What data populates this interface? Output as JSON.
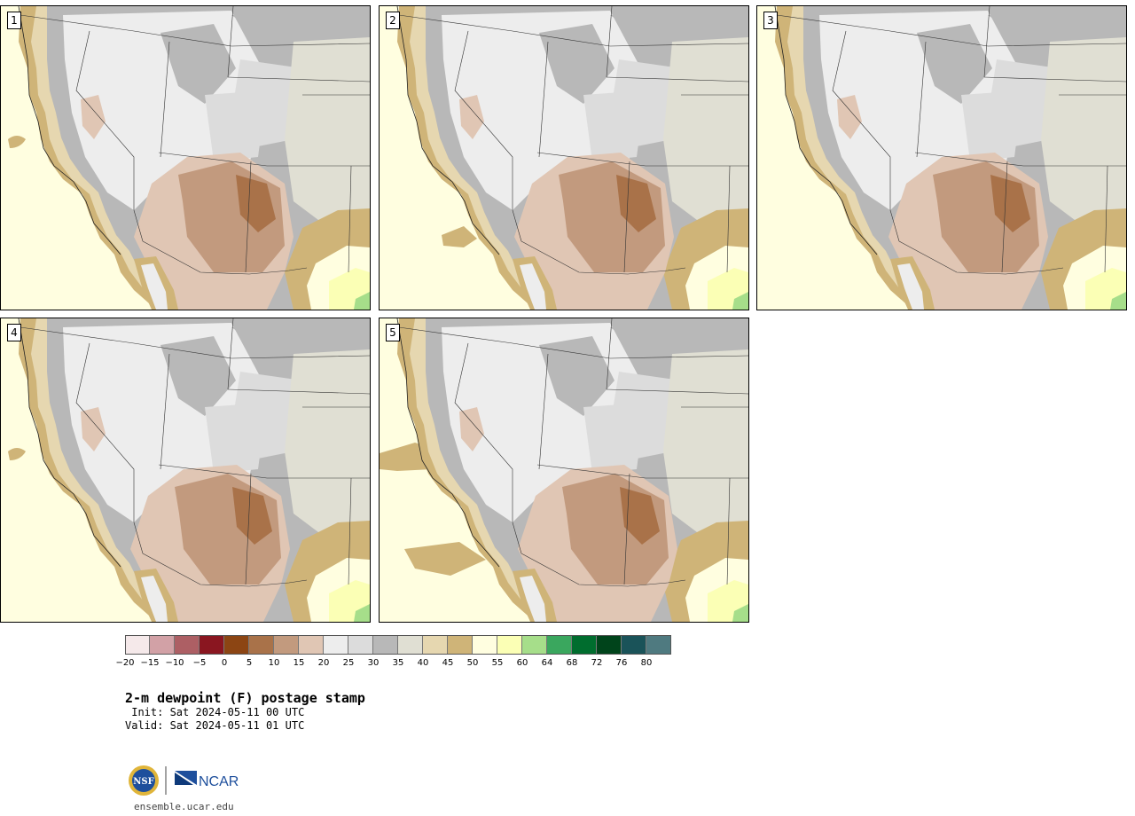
{
  "title": "2-m dewpoint (F) postage stamp",
  "init_line": " Init: Sat 2024-05-11 00 UTC",
  "valid_line": "Valid: Sat 2024-05-11 01 UTC",
  "website": "ensemble.ucar.edu",
  "logos": {
    "nsf": "NSF",
    "ncar": "NCAR"
  },
  "panels": [
    {
      "label": "1"
    },
    {
      "label": "2"
    },
    {
      "label": "3"
    },
    {
      "label": "4"
    },
    {
      "label": "5"
    }
  ],
  "colorbar": {
    "colors": [
      "#f5e9ea",
      "#d2a1a6",
      "#ad5f64",
      "#8a1620",
      "#8c4513",
      "#a97249",
      "#c29a7e",
      "#e0c6b4",
      "#ededed",
      "#dcdcdc",
      "#b8b8b8",
      "#e0dfd3",
      "#e6d7b0",
      "#cfb478",
      "#fffee0",
      "#fbffb5",
      "#a6de8a",
      "#3aa75e",
      "#006d2e",
      "#00441b",
      "#1a5359",
      "#4f7a80"
    ],
    "ticks": [
      "−20",
      "−15",
      "−10",
      "−5",
      "0",
      "5",
      "10",
      "15",
      "20",
      "25",
      "30",
      "35",
      "40",
      "45",
      "50",
      "55",
      "60",
      "64",
      "68",
      "72",
      "76",
      "80"
    ]
  },
  "palette": {
    "ocean": "#fffee0",
    "coast": "#cfb478",
    "coast_light": "#e6d7b0",
    "terrain_light": "#ededed",
    "terrain_mid": "#dcdcdc",
    "terrain_dark": "#b8b8b8",
    "plains": "#e0dfd3",
    "dry_light": "#e0c6b4",
    "dry_mid": "#c29a7e",
    "dry_dark": "#a97249",
    "moist": "#fbffb5",
    "moist_green": "#a6de8a"
  }
}
